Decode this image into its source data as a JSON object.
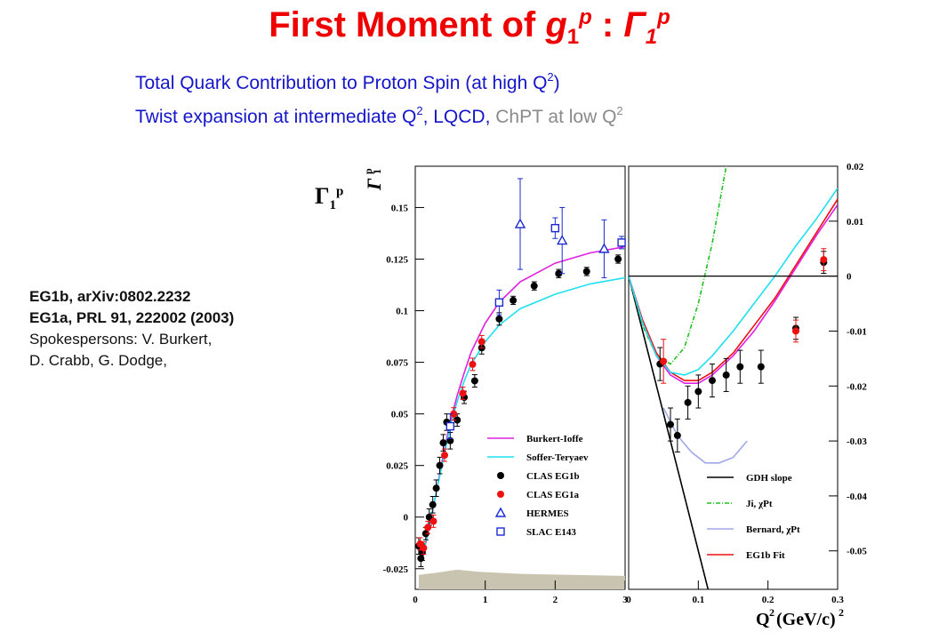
{
  "title": {
    "prefix": "First Moment of ",
    "g": "g",
    "sub1": "1",
    "sup1": "p",
    "colon": " : ",
    "gamma": "Γ",
    "sub2": "1",
    "sup2": "p"
  },
  "subtitle_lines": {
    "line1_text": "Total Quark Contribution to Proton Spin (at high Q",
    "line1_sup": "2",
    "line1_end": ")",
    "line2_text": "Twist expansion at intermediate Q",
    "line2_sup": "2",
    "line2_mid": ",  LQCD, ",
    "line2_gray": " ChPT at low Q",
    "line2_gray_sup": "2"
  },
  "info": {
    "line1": "EG1b,   arXiv:0802.2232",
    "line2": "EG1a, PRL 91, 222002 (2003)",
    "line3": "Spokespersons: V. Burkert,",
    "line4": "D. Crabb, G. Dodge,"
  },
  "side_label": {
    "gamma": "Γ",
    "sub": "1",
    "sup": "p"
  },
  "colors": {
    "title": "#ee0000",
    "subtitle": "#1515c8",
    "gray": "#8a8a8a",
    "magenta": "#e020e0",
    "cyan": "#20e0f0",
    "green": "#20c020",
    "lavender": "#a0a8e8",
    "red": "#ee1111",
    "blue": "#1a2ad0",
    "band": "#c8c4b0"
  },
  "chart_data": [
    {
      "type": "scatter",
      "title": "",
      "ylabel": "Γ1p",
      "xlim": [
        0,
        3
      ],
      "ylim": [
        -0.035,
        0.17
      ],
      "x_ticks": [
        "0",
        "1",
        "2",
        "3"
      ],
      "x_tick_values": [
        0,
        1,
        2,
        3
      ],
      "y_ticks": [
        "-0.025",
        "0",
        "0.025",
        "0.05",
        "0.075",
        "0.1",
        "0.125",
        "0.15"
      ],
      "y_tick_values": [
        -0.025,
        0,
        0.025,
        0.05,
        0.075,
        0.1,
        0.125,
        0.15
      ],
      "legend": [
        {
          "label": "Burkert-Ioffe",
          "kind": "line",
          "color": "#e020e0"
        },
        {
          "label": "Soffer-Teryaev",
          "kind": "line",
          "color": "#20e0f0"
        },
        {
          "label": "CLAS EG1b",
          "kind": "dot",
          "color": "#000000"
        },
        {
          "label": "CLAS EG1a",
          "kind": "dot",
          "color": "#ee1111"
        },
        {
          "label": "HERMES",
          "kind": "triangle",
          "color": "#1a2ad0"
        },
        {
          "label": "SLAC E143",
          "kind": "square",
          "color": "#1a2ad0"
        }
      ],
      "legend_position": "lower-right",
      "series": [
        {
          "name": "Burkert-Ioffe",
          "kind": "line",
          "color": "#e020e0",
          "points": [
            [
              0.1,
              -0.02
            ],
            [
              0.2,
              -0.005
            ],
            [
              0.3,
              0.012
            ],
            [
              0.4,
              0.03
            ],
            [
              0.5,
              0.046
            ],
            [
              0.6,
              0.059
            ],
            [
              0.7,
              0.07
            ],
            [
              0.8,
              0.08
            ],
            [
              1.0,
              0.094
            ],
            [
              1.2,
              0.104
            ],
            [
              1.5,
              0.114
            ],
            [
              2.0,
              0.123
            ],
            [
              2.5,
              0.128
            ],
            [
              3.0,
              0.131
            ]
          ]
        },
        {
          "name": "Soffer-Teryaev",
          "kind": "line",
          "color": "#20e0f0",
          "points": [
            [
              0.1,
              -0.02
            ],
            [
              0.2,
              -0.004
            ],
            [
              0.3,
              0.012
            ],
            [
              0.4,
              0.028
            ],
            [
              0.5,
              0.044
            ],
            [
              0.6,
              0.056
            ],
            [
              0.7,
              0.066
            ],
            [
              0.8,
              0.074
            ],
            [
              1.0,
              0.085
            ],
            [
              1.2,
              0.093
            ],
            [
              1.5,
              0.101
            ],
            [
              2.0,
              0.108
            ],
            [
              2.5,
              0.113
            ],
            [
              3.0,
              0.116
            ]
          ]
        },
        {
          "name": "CLAS EG1b",
          "kind": "dot",
          "color": "#000000",
          "points": [
            [
              0.05,
              -0.014,
              0.004
            ],
            [
              0.08,
              -0.02,
              0.004
            ],
            [
              0.1,
              -0.017,
              0.004
            ],
            [
              0.15,
              -0.008,
              0.003
            ],
            [
              0.2,
              0.0,
              0.004
            ],
            [
              0.25,
              0.006,
              0.004
            ],
            [
              0.3,
              0.014,
              0.004
            ],
            [
              0.35,
              0.025,
              0.004
            ],
            [
              0.4,
              0.036,
              0.004
            ],
            [
              0.45,
              0.046,
              0.004
            ],
            [
              0.5,
              0.037,
              0.004
            ],
            [
              0.6,
              0.047,
              0.003
            ],
            [
              0.7,
              0.058,
              0.003
            ],
            [
              0.85,
              0.066,
              0.003
            ],
            [
              0.95,
              0.082,
              0.003
            ],
            [
              1.2,
              0.096,
              0.003
            ],
            [
              1.4,
              0.105,
              0.002
            ],
            [
              1.7,
              0.112,
              0.002
            ],
            [
              2.05,
              0.118,
              0.002
            ],
            [
              2.45,
              0.119,
              0.002
            ],
            [
              2.9,
              0.125,
              0.002
            ]
          ]
        },
        {
          "name": "CLAS EG1a",
          "kind": "dot",
          "color": "#ee1111",
          "points": [
            [
              0.07,
              -0.013,
              0.003
            ],
            [
              0.12,
              -0.015,
              0.003
            ],
            [
              0.18,
              -0.005,
              0.003
            ],
            [
              0.26,
              -0.002,
              0.003
            ],
            [
              0.42,
              0.03,
              0.003
            ],
            [
              0.55,
              0.05,
              0.003
            ],
            [
              0.68,
              0.06,
              0.003
            ],
            [
              0.82,
              0.074,
              0.003
            ],
            [
              0.95,
              0.085,
              0.003
            ]
          ]
        },
        {
          "name": "HERMES",
          "kind": "triangle",
          "color": "#1a2ad0",
          "points": [
            [
              1.5,
              0.142,
              0.022
            ],
            [
              2.1,
              0.134,
              0.016
            ],
            [
              2.7,
              0.13,
              0.014
            ]
          ]
        },
        {
          "name": "SLAC E143",
          "kind": "square",
          "color": "#1a2ad0",
          "points": [
            [
              0.5,
              0.044,
              0.006
            ],
            [
              1.2,
              0.104,
              0.006
            ],
            [
              2.0,
              0.14,
              0.005
            ],
            [
              2.95,
              0.133,
              0.003
            ]
          ]
        }
      ]
    },
    {
      "type": "line",
      "title": "",
      "xlabel": "Q²(GeV/c)²",
      "xlim": [
        0,
        0.3
      ],
      "ylim": [
        -0.057,
        0.02
      ],
      "x_ticks": [
        "0",
        "0.1",
        "0.2",
        "0.3"
      ],
      "x_tick_values": [
        0,
        0.1,
        0.2,
        0.3
      ],
      "y_ticks": [
        "0.02",
        "0.01",
        "0",
        "-0.01",
        "-0.02",
        "-0.03",
        "-0.04",
        "-0.05"
      ],
      "y_tick_values": [
        0.02,
        0.01,
        0,
        -0.01,
        -0.02,
        -0.03,
        -0.04,
        -0.05
      ],
      "legend": [
        {
          "label": "GDH slope",
          "kind": "line",
          "color": "#000000"
        },
        {
          "label": "Ji, χPt",
          "kind": "dashdot",
          "color": "#20c020"
        },
        {
          "label": "Bernard, χPt",
          "kind": "line",
          "color": "#a0a8e8"
        },
        {
          "label": "EG1b Fit",
          "kind": "line",
          "color": "#ee1111"
        }
      ],
      "legend_position": "lower-right",
      "series": [
        {
          "name": "GDH slope",
          "kind": "line",
          "color": "#000000",
          "points": [
            [
              0,
              0
            ],
            [
              0.114,
              -0.057
            ]
          ]
        },
        {
          "name": "Ji, χPt",
          "kind": "dashdot",
          "color": "#20c020",
          "points": [
            [
              0,
              0
            ],
            [
              0.02,
              -0.009
            ],
            [
              0.04,
              -0.0145
            ],
            [
              0.06,
              -0.016
            ],
            [
              0.08,
              -0.013
            ],
            [
              0.1,
              -0.005
            ],
            [
              0.12,
              0.006
            ],
            [
              0.14,
              0.02
            ]
          ]
        },
        {
          "name": "Bernard, χPt",
          "kind": "line",
          "color": "#a0a8e8",
          "points": [
            [
              0.05,
              -0.024
            ],
            [
              0.07,
              -0.029
            ],
            [
              0.09,
              -0.032
            ],
            [
              0.11,
              -0.034
            ],
            [
              0.13,
              -0.034
            ],
            [
              0.15,
              -0.033
            ],
            [
              0.17,
              -0.03
            ]
          ]
        },
        {
          "name": "EG1b Fit",
          "kind": "line",
          "color": "#ee1111",
          "points": [
            [
              0,
              0
            ],
            [
              0.02,
              -0.008
            ],
            [
              0.04,
              -0.014
            ],
            [
              0.06,
              -0.0175
            ],
            [
              0.08,
              -0.019
            ],
            [
              0.1,
              -0.019
            ],
            [
              0.12,
              -0.0175
            ],
            [
              0.15,
              -0.014
            ],
            [
              0.18,
              -0.009
            ],
            [
              0.21,
              -0.004
            ],
            [
              0.24,
              0.002
            ],
            [
              0.27,
              0.008
            ],
            [
              0.3,
              0.014
            ]
          ]
        },
        {
          "name": "Burkert-Ioffe",
          "kind": "line",
          "color": "#e020e0",
          "points": [
            [
              0,
              0
            ],
            [
              0.02,
              -0.0085
            ],
            [
              0.04,
              -0.0145
            ],
            [
              0.06,
              -0.018
            ],
            [
              0.08,
              -0.0195
            ],
            [
              0.1,
              -0.0195
            ],
            [
              0.12,
              -0.018
            ],
            [
              0.15,
              -0.0145
            ],
            [
              0.18,
              -0.01
            ],
            [
              0.21,
              -0.0045
            ],
            [
              0.24,
              0.0015
            ],
            [
              0.27,
              0.0075
            ],
            [
              0.3,
              0.013
            ]
          ]
        },
        {
          "name": "Soffer-Teryaev",
          "kind": "line",
          "color": "#20e0f0",
          "points": [
            [
              0,
              0
            ],
            [
              0.02,
              -0.0085
            ],
            [
              0.04,
              -0.0145
            ],
            [
              0.06,
              -0.0175
            ],
            [
              0.08,
              -0.018
            ],
            [
              0.1,
              -0.017
            ],
            [
              0.12,
              -0.0145
            ],
            [
              0.15,
              -0.01
            ],
            [
              0.18,
              -0.005
            ],
            [
              0.21,
              0.0
            ],
            [
              0.24,
              0.0055
            ],
            [
              0.27,
              0.0105
            ],
            [
              0.3,
              0.016
            ]
          ]
        },
        {
          "name": "CLAS EG1b",
          "kind": "dot",
          "color": "#000000",
          "points": [
            [
              0.045,
              -0.016,
              0.003
            ],
            [
              0.06,
              -0.027,
              0.003
            ],
            [
              0.07,
              -0.029,
              0.003
            ],
            [
              0.085,
              -0.023,
              0.003
            ],
            [
              0.1,
              -0.021,
              0.003
            ],
            [
              0.12,
              -0.019,
              0.003
            ],
            [
              0.14,
              -0.018,
              0.003
            ],
            [
              0.16,
              -0.0165,
              0.003
            ],
            [
              0.19,
              -0.0165,
              0.003
            ],
            [
              0.24,
              -0.0095,
              0.002
            ],
            [
              0.28,
              0.0025,
              0.002
            ]
          ]
        },
        {
          "name": "CLAS EG1a",
          "kind": "dot",
          "color": "#ee1111",
          "points": [
            [
              0.05,
              -0.0155,
              0.004
            ],
            [
              0.24,
              -0.01,
              0.002
            ],
            [
              0.28,
              0.003,
              0.002
            ]
          ]
        }
      ]
    }
  ]
}
